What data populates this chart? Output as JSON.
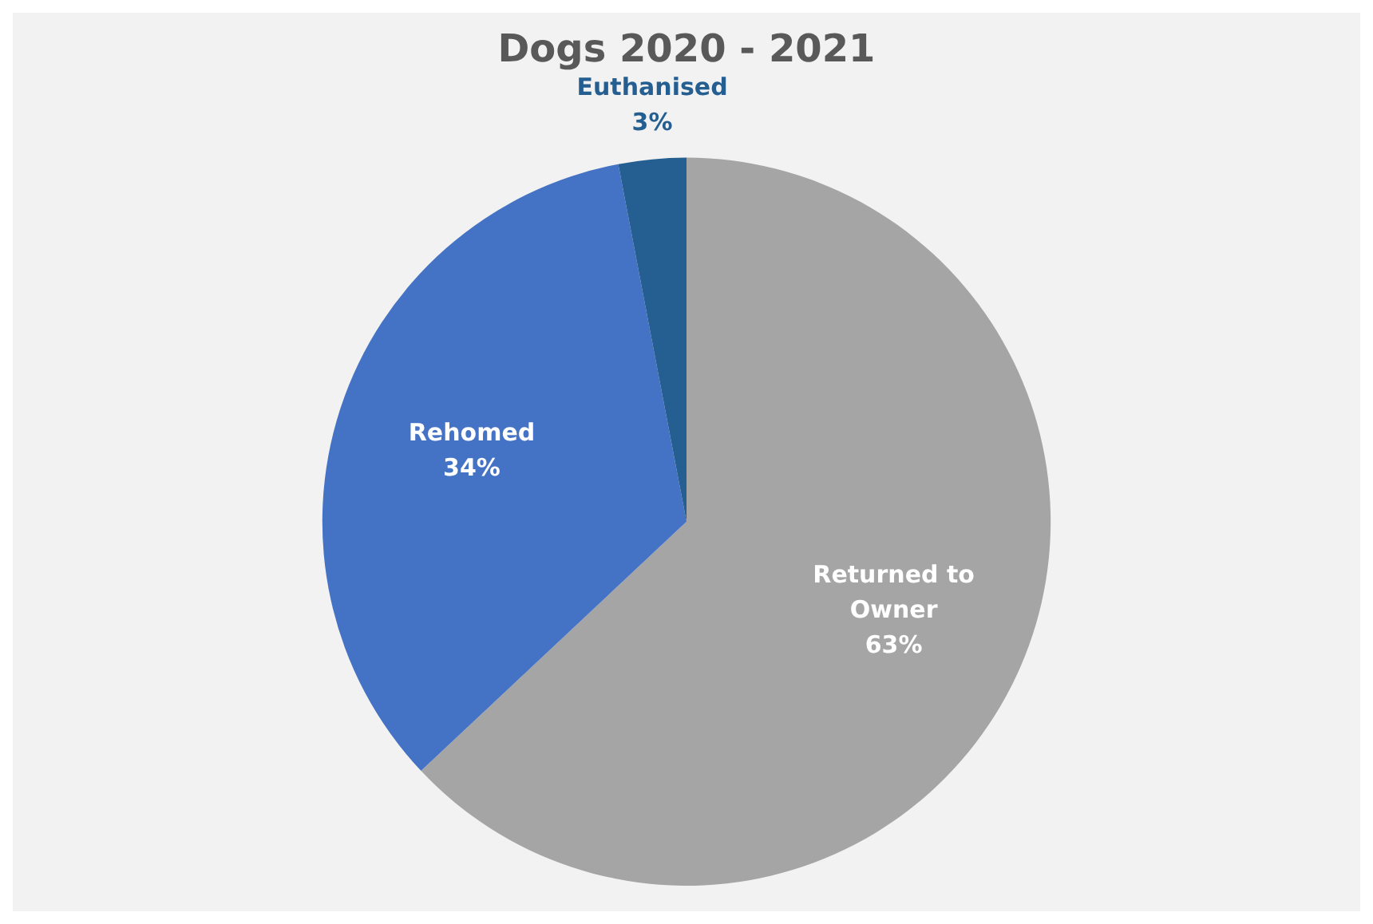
{
  "chart_data": {
    "type": "pie",
    "title": "Dogs 2020 - 2021",
    "categories": [
      "Returned to Owner",
      "Rehomed",
      "Euthanised"
    ],
    "values": [
      63,
      34,
      3
    ],
    "colors": [
      "#a5a5a5",
      "#4472c4",
      "#255e91"
    ],
    "value_labels": [
      "63%",
      "34%",
      "3%"
    ]
  }
}
